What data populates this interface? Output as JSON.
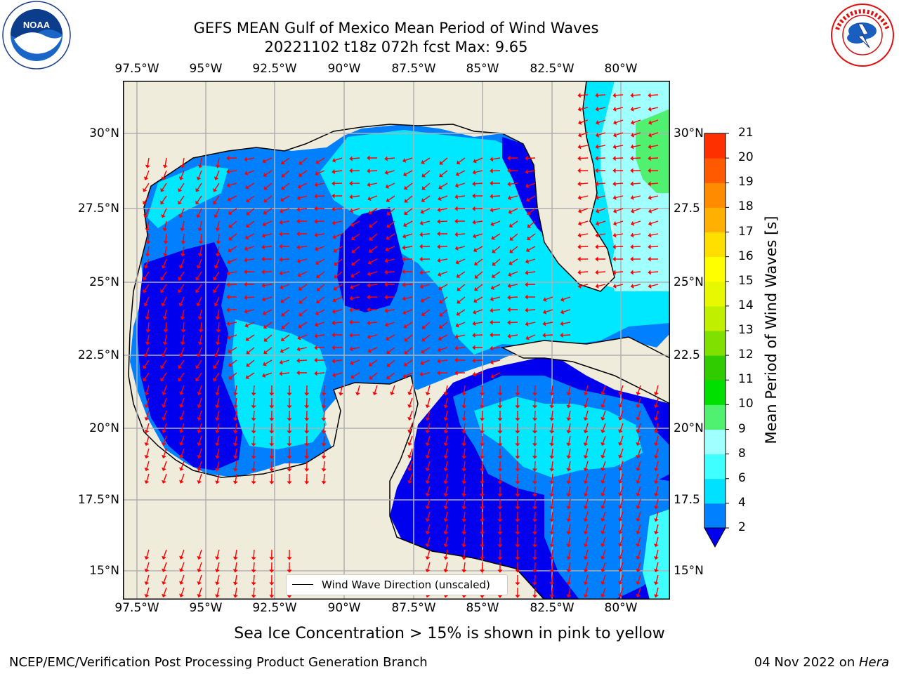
{
  "title": {
    "line1": "GEFS MEAN Gulf of Mexico Mean Period of Wind Waves",
    "line2": "20221102 t18z 072h fcst   Max: 9.65"
  },
  "axes": {
    "lon_ticks": [
      "97.5°W",
      "95°W",
      "92.5°W",
      "90°W",
      "87.5°W",
      "85°W",
      "82.5°W",
      "80°W"
    ],
    "lat_ticks": [
      "30°N",
      "27.5°N",
      "25°N",
      "22.5°N",
      "20°N",
      "17.5°N",
      "15°N"
    ],
    "lat_ticks_right": [
      "30°N",
      "27.5",
      "25°N",
      "22.5",
      "20°N",
      "17.5",
      "15°N"
    ]
  },
  "colorbar": {
    "label": "Mean Period of Wind Waves [s]",
    "tick_labels": [
      "2",
      "4",
      "6",
      "8",
      "9",
      "10",
      "11",
      "12",
      "13",
      "14",
      "15",
      "16",
      "17",
      "18",
      "19",
      "20",
      "21"
    ],
    "colors": [
      "#0080ff",
      "#00e0ff",
      "#40ffff",
      "#a0ffff",
      "#50f070",
      "#00e000",
      "#30cc00",
      "#80e000",
      "#c0f000",
      "#e8f800",
      "#ffff00",
      "#ffdf00",
      "#ffb000",
      "#ff8c00",
      "#ff5a00",
      "#ff3000",
      "#ff0000"
    ],
    "extend_color": "#0000ee"
  },
  "legend": {
    "label": "Wind Wave Direction (unscaled)"
  },
  "annotation": "Sea Ice Concentration > 15% is shown in pink to yellow",
  "footer": {
    "left": "NCEP/EMC/Verification Post Processing Product Generation Branch",
    "right_prefix": "04 Nov 2022 on ",
    "right_italic": "Hera"
  },
  "logos": {
    "left": {
      "name": "noaa-logo",
      "text": "NOAA",
      "ring_text": "NATIONAL OCEANIC AND ATMOSPHERIC ADMINISTRATION · U.S. DEPARTMENT OF COMMERCE"
    },
    "right": {
      "name": "nws-logo",
      "ring_text": "NATIONAL WEATHER SERVICE"
    }
  },
  "map_colors": {
    "land": "#efecdc",
    "period_lt2": "#0000ee",
    "period_2_4": "#0080ff",
    "period_4_6": "#00e8ff",
    "period_6_8": "#40ffff",
    "period_8_9": "#a0ffff",
    "period_9_10": "#50f070",
    "arrow": "#ff0000",
    "grid": "#b0b0b0"
  }
}
